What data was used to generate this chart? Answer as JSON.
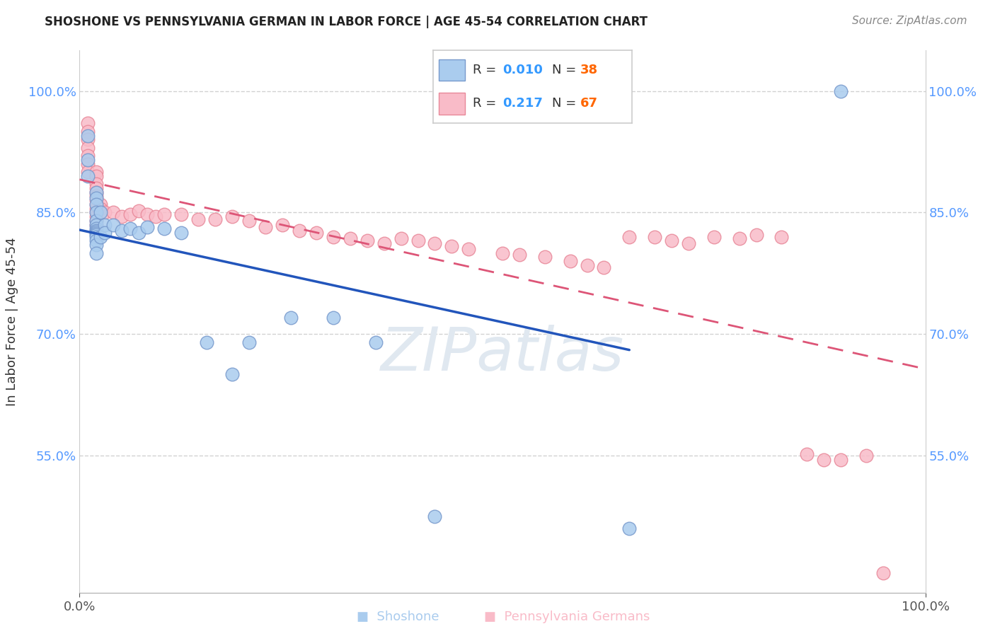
{
  "title": "SHOSHONE VS PENNSYLVANIA GERMAN IN LABOR FORCE | AGE 45-54 CORRELATION CHART",
  "source": "Source: ZipAtlas.com",
  "ylabel": "In Labor Force | Age 45-54",
  "xlim": [
    0.0,
    1.0
  ],
  "ylim": [
    0.38,
    1.05
  ],
  "yticks": [
    0.55,
    0.7,
    0.85,
    1.0
  ],
  "yticklabels": [
    "55.0%",
    "70.0%",
    "85.0%",
    "100.0%"
  ],
  "shoshone_color": "#aaccee",
  "shoshone_edge_color": "#7799cc",
  "penn_color": "#f9bbc8",
  "penn_edge_color": "#e88899",
  "shoshone_R": 0.01,
  "shoshone_N": 38,
  "penn_R": 0.217,
  "penn_N": 67,
  "shoshone_line_color": "#2255bb",
  "penn_line_color": "#dd5577",
  "tick_color": "#5599ff",
  "legend_R_color": "#3399ff",
  "legend_N_color": "#ff6600",
  "watermark_color": "#e0e8f0",
  "shoshone_x": [
    0.01,
    0.01,
    0.01,
    0.02,
    0.02,
    0.02,
    0.02,
    0.02,
    0.02,
    0.02,
    0.02,
    0.02,
    0.02,
    0.02,
    0.02,
    0.02,
    0.02,
    0.02,
    0.025,
    0.025,
    0.03,
    0.03,
    0.04,
    0.05,
    0.06,
    0.07,
    0.08,
    0.1,
    0.12,
    0.15,
    0.18,
    0.2,
    0.25,
    0.3,
    0.35,
    0.42,
    0.65,
    0.9
  ],
  "shoshone_y": [
    0.945,
    0.915,
    0.895,
    0.875,
    0.868,
    0.86,
    0.85,
    0.84,
    0.835,
    0.83,
    0.828,
    0.826,
    0.824,
    0.822,
    0.82,
    0.815,
    0.81,
    0.8,
    0.85,
    0.82,
    0.835,
    0.825,
    0.835,
    0.828,
    0.83,
    0.825,
    0.832,
    0.83,
    0.825,
    0.69,
    0.65,
    0.69,
    0.72,
    0.72,
    0.69,
    0.475,
    0.46,
    1.0
  ],
  "penn_x": [
    0.01,
    0.01,
    0.01,
    0.01,
    0.01,
    0.01,
    0.01,
    0.02,
    0.02,
    0.02,
    0.02,
    0.02,
    0.02,
    0.02,
    0.02,
    0.02,
    0.02,
    0.02,
    0.02,
    0.02,
    0.025,
    0.025,
    0.03,
    0.04,
    0.05,
    0.06,
    0.07,
    0.08,
    0.09,
    0.1,
    0.12,
    0.14,
    0.16,
    0.18,
    0.2,
    0.22,
    0.24,
    0.26,
    0.28,
    0.3,
    0.32,
    0.34,
    0.36,
    0.38,
    0.4,
    0.42,
    0.44,
    0.46,
    0.5,
    0.52,
    0.55,
    0.58,
    0.6,
    0.62,
    0.65,
    0.68,
    0.7,
    0.72,
    0.75,
    0.78,
    0.8,
    0.83,
    0.86,
    0.88,
    0.9,
    0.93,
    0.95
  ],
  "penn_y": [
    0.96,
    0.95,
    0.94,
    0.93,
    0.92,
    0.91,
    0.9,
    0.9,
    0.895,
    0.885,
    0.88,
    0.875,
    0.87,
    0.865,
    0.86,
    0.855,
    0.85,
    0.845,
    0.84,
    0.835,
    0.86,
    0.855,
    0.85,
    0.85,
    0.845,
    0.848,
    0.852,
    0.848,
    0.845,
    0.848,
    0.848,
    0.842,
    0.842,
    0.845,
    0.84,
    0.832,
    0.835,
    0.828,
    0.825,
    0.82,
    0.818,
    0.815,
    0.812,
    0.818,
    0.815,
    0.812,
    0.808,
    0.805,
    0.8,
    0.798,
    0.795,
    0.79,
    0.785,
    0.782,
    0.82,
    0.82,
    0.815,
    0.812,
    0.82,
    0.818,
    0.822,
    0.82,
    0.552,
    0.545,
    0.545,
    0.55,
    0.405
  ]
}
